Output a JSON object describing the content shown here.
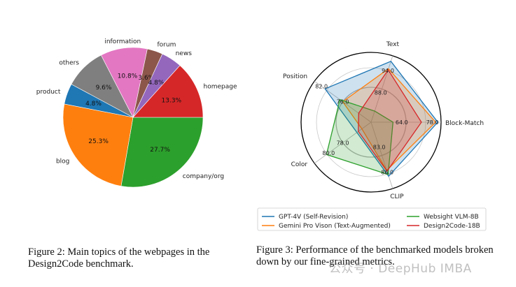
{
  "chart_data": [
    {
      "type": "pie",
      "title": "",
      "categories": [
        "company/org",
        "blog",
        "product",
        "others",
        "information",
        "forum",
        "news",
        "homepage"
      ],
      "values": [
        27.7,
        25.3,
        4.8,
        9.6,
        10.8,
        3.6,
        4.8,
        13.3
      ],
      "labels": [
        "27.7%",
        "25.3%",
        "4.8%",
        "9.6%",
        "10.8%",
        "3.6%",
        "4.8%",
        "13.3%"
      ],
      "colors": [
        "#2ca02c",
        "#ff7f0e",
        "#1f77b4",
        "#7f7f7f",
        "#e377c2",
        "#8c564b",
        "#9467bd",
        "#d62728"
      ],
      "start_angle_deg": 0,
      "direction": "clockwise"
    },
    {
      "type": "radar",
      "axes": [
        "Text",
        "Block-Match",
        "CLIP",
        "Color",
        "Position"
      ],
      "axis_ranges": [
        [
          80,
          98
        ],
        [
          50,
          82
        ],
        [
          80,
          88
        ],
        [
          74,
          82
        ],
        [
          68,
          84
        ]
      ],
      "radial_tick_labels": [
        {
          "axis": "Text",
          "labels": [
            "88.0",
            "94.0"
          ],
          "values": [
            88,
            94
          ]
        },
        {
          "axis": "Block-Match",
          "labels": [
            "64.0",
            "78.0"
          ],
          "values": [
            64,
            78
          ]
        },
        {
          "axis": "CLIP",
          "labels": [
            "83.0",
            "86.0"
          ],
          "values": [
            83,
            86
          ]
        },
        {
          "axis": "Color",
          "labels": [
            "78.0",
            "80.0"
          ],
          "values": [
            78,
            80
          ]
        },
        {
          "axis": "Position",
          "labels": [
            "76.0",
            "82.0"
          ],
          "values": [
            76,
            82
          ]
        }
      ],
      "series": [
        {
          "name": "GPT-4V (Self-Revision)",
          "color": "#1f77b4",
          "values": [
            96.5,
            80.5,
            86.5,
            76,
            81
          ]
        },
        {
          "name": "Gemini Pro Vison (Text-Augmented)",
          "color": "#ff7f0e",
          "values": [
            94.5,
            79.5,
            85.8,
            75.3,
            76
          ]
        },
        {
          "name": "Websight VLM-8B",
          "color": "#2ca02c",
          "values": [
            83,
            60,
            86.3,
            80.3,
            76.8
          ]
        },
        {
          "name": "Design2Code-18B",
          "color": "#d62728",
          "values": [
            94.2,
            73,
            85.9,
            75.8,
            71.5
          ]
        }
      ],
      "legend": "bottom"
    }
  ],
  "captions": {
    "fig2": "Figure 2: Main topics of the webpages in the Design2Code benchmark.",
    "fig3": "Figure 3: Performance of the benchmarked models broken down by our fine-grained metrics."
  },
  "watermark": "公众号 · DeepHub IMBA"
}
